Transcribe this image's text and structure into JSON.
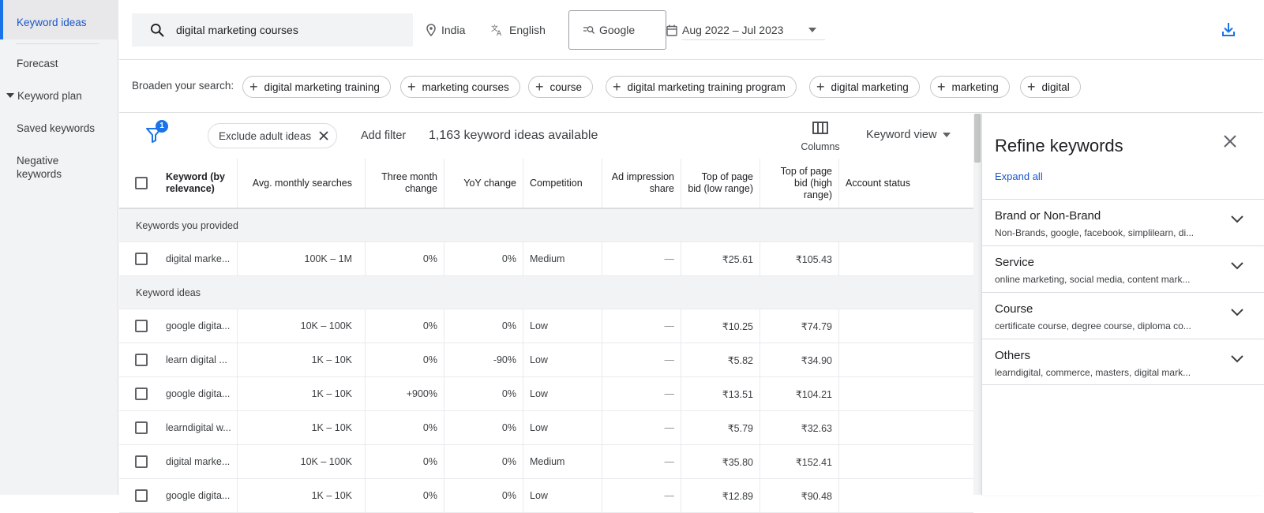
{
  "sidebar": {
    "items": [
      {
        "label": "Keyword ideas",
        "active": true
      },
      {
        "label": "Forecast"
      },
      {
        "label": "Keyword plan"
      },
      {
        "label": "Saved keywords"
      },
      {
        "label": "Negative keywords"
      }
    ]
  },
  "topbar": {
    "search_value": "digital marketing courses",
    "location": "India",
    "language": "English",
    "network": "Google",
    "date_range": "Aug 2022 – Jul 2023",
    "icons": [
      "search-icon",
      "location-pin-icon",
      "translate-icon",
      "search-network-icon",
      "calendar-icon",
      "dropdown-arrow-icon",
      "download-icon"
    ]
  },
  "broaden": {
    "label": "Broaden your search:",
    "chips": [
      "digital marketing training",
      "marketing courses",
      "course",
      "digital marketing training program",
      "digital marketing",
      "marketing",
      "digital"
    ]
  },
  "filterbar": {
    "filter_badge": "1",
    "exclude_chip": "Exclude adult ideas",
    "add_filter": "Add filter",
    "ideas_count": "1,163 keyword ideas available",
    "columns_label": "Columns",
    "view_label": "Keyword view"
  },
  "table": {
    "headers": {
      "keyword": "Keyword (by relevance)",
      "avg": "Avg. monthly searches",
      "three_month": "Three month change",
      "yoy": "YoY change",
      "competition": "Competition",
      "impression": "Ad impression share",
      "bid_low": "Top of page bid (low range)",
      "bid_high": "Top of page bid (high range)",
      "status": "Account status"
    },
    "section_provided": "Keywords you provided",
    "section_ideas": "Keyword ideas",
    "provided_rows": [
      {
        "keyword": "digital marke...",
        "avg": "100K – 1M",
        "three": "0%",
        "yoy": "0%",
        "comp": "Medium",
        "imp": "—",
        "low": "₹25.61",
        "high": "₹105.43"
      }
    ],
    "idea_rows": [
      {
        "keyword": "google digita...",
        "avg": "10K – 100K",
        "three": "0%",
        "yoy": "0%",
        "comp": "Low",
        "imp": "—",
        "low": "₹10.25",
        "high": "₹74.79"
      },
      {
        "keyword": "learn digital ...",
        "avg": "1K – 10K",
        "three": "0%",
        "yoy": "-90%",
        "comp": "Low",
        "imp": "—",
        "low": "₹5.82",
        "high": "₹34.90"
      },
      {
        "keyword": "google digita...",
        "avg": "1K – 10K",
        "three": "+900%",
        "yoy": "0%",
        "comp": "Low",
        "imp": "—",
        "low": "₹13.51",
        "high": "₹104.21"
      },
      {
        "keyword": "learndigital w...",
        "avg": "1K – 10K",
        "three": "0%",
        "yoy": "0%",
        "comp": "Low",
        "imp": "—",
        "low": "₹5.79",
        "high": "₹32.63"
      },
      {
        "keyword": "digital marke...",
        "avg": "10K – 100K",
        "three": "0%",
        "yoy": "0%",
        "comp": "Medium",
        "imp": "—",
        "low": "₹35.80",
        "high": "₹152.41"
      },
      {
        "keyword": "google digita...",
        "avg": "1K – 10K",
        "three": "0%",
        "yoy": "0%",
        "comp": "Low",
        "imp": "—",
        "low": "₹12.89",
        "high": "₹90.48"
      }
    ]
  },
  "refine": {
    "title": "Refine keywords",
    "expand_all": "Expand all",
    "groups": [
      {
        "title": "Brand or Non-Brand",
        "sub": "Non-Brands, google, facebook, simplilearn, di..."
      },
      {
        "title": "Service",
        "sub": "online marketing, social media, content mark..."
      },
      {
        "title": "Course",
        "sub": "certificate course, degree course, diploma co..."
      },
      {
        "title": "Others",
        "sub": "learndigital, commerce, masters, digital mark..."
      }
    ]
  },
  "colors": {
    "accent": "#1a73e8",
    "link": "#1a56c8",
    "sidebar_bg": "#f1f3f4"
  }
}
